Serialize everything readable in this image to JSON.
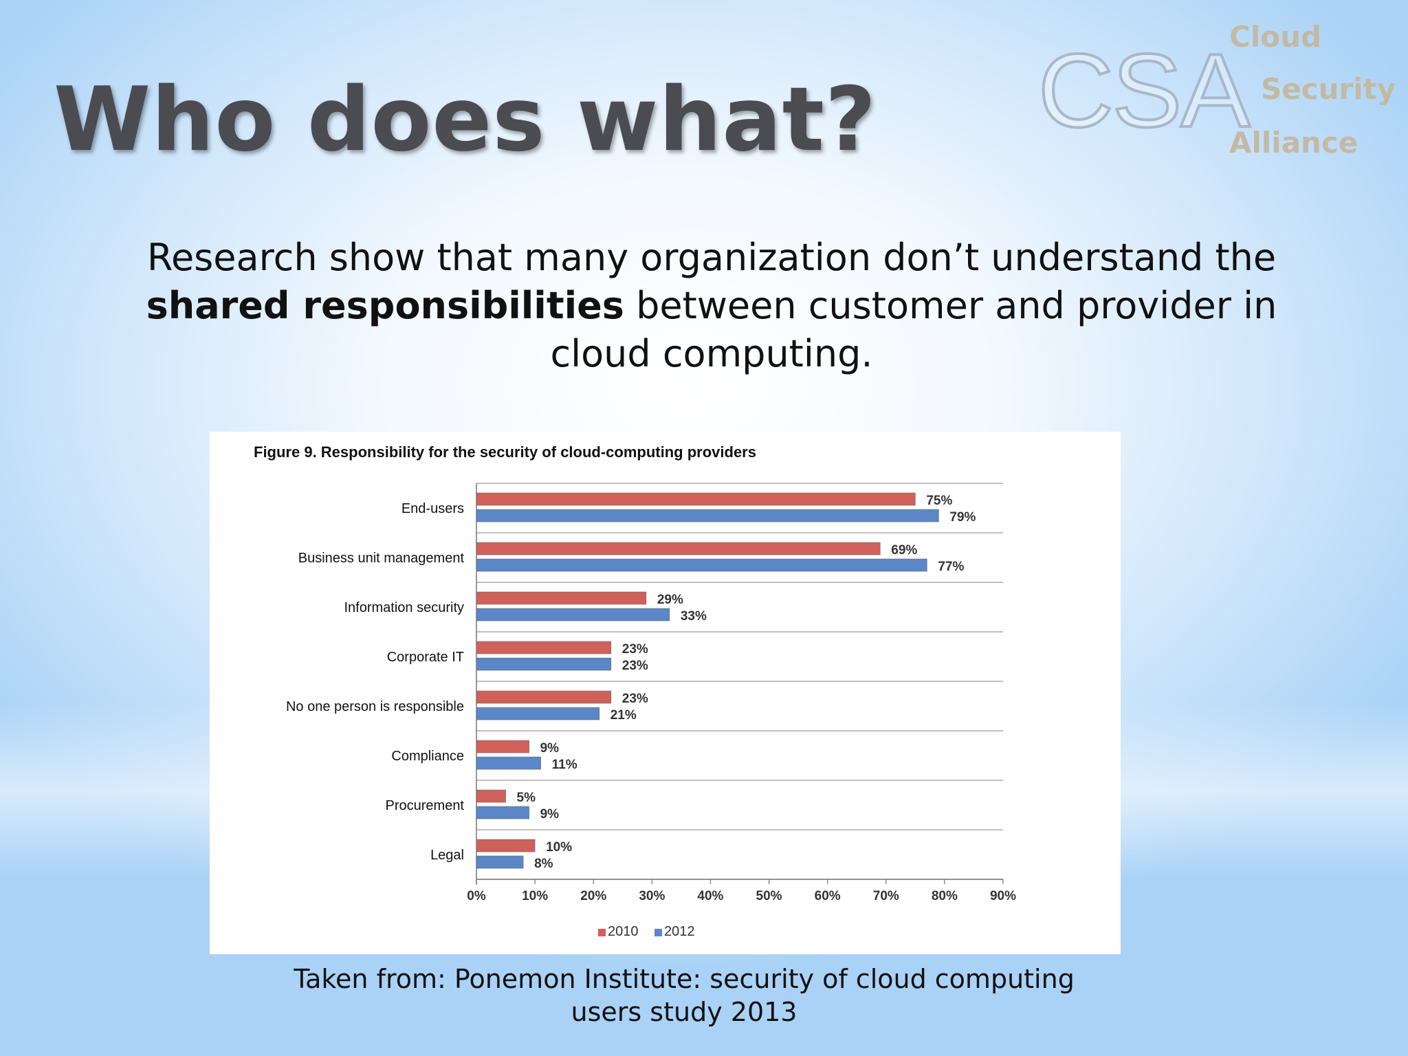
{
  "slide": {
    "title": "Who does what?",
    "subtitle_pre": "Research show that many organization don’t understand the ",
    "subtitle_bold": "shared responsibilities",
    "subtitle_post": " between customer and provider in cloud computing.",
    "caption_line1": "Taken from: Ponemon Institute: security of cloud computing",
    "caption_line2": "users study 2013"
  },
  "logo": {
    "letters": "CSA",
    "word1": "Cloud",
    "word2": "Security",
    "word3": "Alliance"
  },
  "colors": {
    "series_2010": "#d0605a",
    "series_2012": "#5b86c7",
    "title": "#4a4c52"
  },
  "chart_data": {
    "type": "bar",
    "orientation": "horizontal",
    "title": "Figure 9. Responsibility for the security of cloud-computing providers",
    "categories": [
      "End-users",
      "Business unit management",
      "Information security",
      "Corporate IT",
      "No one person is responsible",
      "Compliance",
      "Procurement",
      "Legal"
    ],
    "series": [
      {
        "name": "2010",
        "values": [
          75,
          69,
          29,
          23,
          23,
          9,
          5,
          10
        ],
        "labels": [
          "75%",
          "69%",
          "29%",
          "23%",
          "23%",
          "9%",
          "5%",
          "10%"
        ]
      },
      {
        "name": "2012",
        "values": [
          79,
          77,
          33,
          23,
          21,
          11,
          9,
          8
        ],
        "labels": [
          "79%",
          "77%",
          "33%",
          "23%",
          "21%",
          "11%",
          "9%",
          "8%"
        ]
      }
    ],
    "xlim": [
      0,
      90
    ],
    "xticks": [
      "0%",
      "10%",
      "20%",
      "30%",
      "40%",
      "50%",
      "60%",
      "70%",
      "80%",
      "90%"
    ],
    "legend_position": "bottom",
    "grid": "horizontal separators between categories"
  }
}
